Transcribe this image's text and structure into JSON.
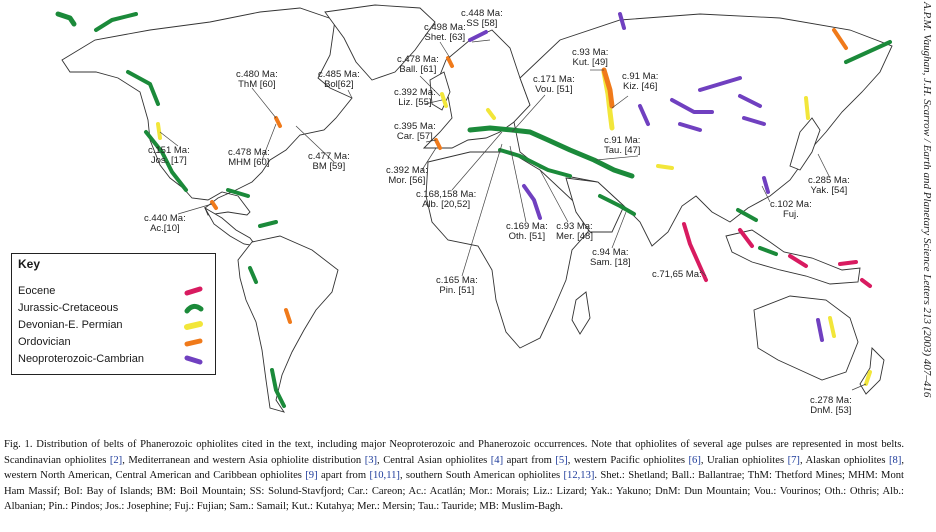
{
  "side_caption": "A.P.M. Vaughan, J.H. Scarrow / Earth and Planetary Science Letters 213 (2003) 407–416",
  "legend": {
    "title": "Key",
    "items": [
      {
        "label": "Eocene",
        "color": "#d81b60"
      },
      {
        "label": "Jurassic-Cretaceous",
        "color": "#1b8a3a"
      },
      {
        "label": "Devonian-E. Permian",
        "color": "#f2e63a"
      },
      {
        "label": "Ordovician",
        "color": "#f07a1a"
      },
      {
        "label": "Neoproterozoic-Cambrian",
        "color": "#7040c0"
      }
    ]
  },
  "labels": {
    "shet": "c.498 Ma:\nShet. [63]",
    "ss": "c.448 Ma:\nSS [58]",
    "ball": "c.478 Ma:\nBall. [61]",
    "thm": "c.480 Ma:\nThM [60]",
    "bol": "c.485 Ma:\nBol[62]",
    "liz": "c.392 Ma:\nLiz. [55]",
    "kut": "c.93 Ma:\nKut. [49]",
    "vou": "c.171 Ma:\nVou. [51]",
    "kiz": "c.91 Ma:\nKiz. [46]",
    "car": "c.395 Ma:\nCar. [57]",
    "jos": "c.151 Ma:\nJos. [17]",
    "mhm": "c.478 Ma:\nMHM [60]",
    "bm": "c.477 Ma:\nBM [59]",
    "mor": "c.392 Ma:\nMor. [56]",
    "tau": "c.91 Ma:\nTau. [47]",
    "yak": "c.285 Ma:\nYak. [54]",
    "alb": "c.168,158 Ma:\nAlb. [20,52]",
    "fuj": "c.102 Ma:\nFuj.",
    "ac": "c.440 Ma:\nAc.[10]",
    "oth": "c.169 Ma:\nOth. [51]",
    "mer": "c.93 Ma:\nMer. [48]",
    "sam": "c.94 Ma:\nSam. [18]",
    "pin": "c.165 Ma:\nPin. [51]",
    "dnm71": "c.71,65 Ma:",
    "dnm": "c.278 Ma:\nDnM. [53]"
  },
  "caption": {
    "p1": "Fig. 1. Distribution of belts of Phanerozoic ophiolites cited in the text, including major Neoproterozoic and Phanerozoic occurrences. Note that ophiolites of several age pulses are represented in most belts. Scandinavian ophiolites ",
    "r1": "[2]",
    "p2": ", Mediterranean and western Asia ophiolite distribution ",
    "r2": "[3]",
    "p3": ", Central Asian ophiolites ",
    "r3": "[4]",
    "p4": " apart from ",
    "r4": "[5]",
    "p5": ", western Pacific ophiolites ",
    "r5": "[6]",
    "p6": ", Uralian ophiolites ",
    "r6": "[7]",
    "p7": ", Alaskan ophiolites ",
    "r7": "[8]",
    "p8": ", western North American, Central American and Caribbean ophiolites ",
    "r8": "[9]",
    "p9": " apart from ",
    "r9": "[10,11]",
    "p10": ", southern South American ophiolites ",
    "r10": "[12,13]",
    "p11": ". Shet.: Shetland; Ball.: Ballantrae; ThM: Thetford Mines; MHM: Mont Ham Massif; BoI: Bay of Islands; BM: Boil Mountain; SS: Solund-Stavfjord; Car.: Careon; Ac.: Acatlán; Mor.: Morais; Liz.: Lizard; Yak.: Yakuno; DnM: Dun Mountain; Vou.: Vourinos; Oth.: Othris; Alb.: Albanian; Pin.: Pindos; Jos.: Josephine; Fuj.: Fujian; Sam.: Samail; Kut.: Kutahya; Mer.: Mersin; Tau.: Tauride; MB: Muslim-Bagh."
  }
}
